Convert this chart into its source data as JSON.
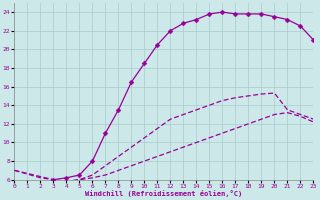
{
  "xlabel": "Windchill (Refroidissement éolien,°C)",
  "bg_color": "#cce8e8",
  "line_color": "#990099",
  "grid_color": "#b0d0d0",
  "xlim": [
    0,
    23
  ],
  "ylim": [
    6,
    25
  ],
  "yticks": [
    6,
    8,
    10,
    12,
    14,
    16,
    18,
    20,
    22,
    24
  ],
  "xticks": [
    0,
    1,
    2,
    3,
    4,
    5,
    6,
    7,
    8,
    9,
    10,
    11,
    12,
    13,
    14,
    15,
    16,
    17,
    18,
    19,
    20,
    21,
    22,
    23
  ],
  "curve_top_x": [
    3,
    4,
    5,
    6,
    7,
    8,
    9,
    10,
    11,
    12,
    13,
    14,
    15,
    16,
    17,
    18,
    19,
    20,
    21,
    22,
    23
  ],
  "curve_top_y": [
    6.0,
    6.2,
    6.5,
    8.0,
    11.0,
    13.5,
    16.5,
    18.5,
    20.5,
    22.0,
    22.8,
    23.2,
    23.8,
    24.0,
    23.8,
    23.8,
    23.8,
    23.5,
    23.2,
    22.5,
    21.0
  ],
  "curve_mid_x": [
    0,
    3,
    4,
    5,
    6,
    7,
    8,
    9,
    10,
    11,
    12,
    13,
    14,
    15,
    16,
    17,
    18,
    19,
    20,
    21,
    22,
    23
  ],
  "curve_mid_y": [
    7.0,
    6.0,
    5.8,
    6.0,
    6.5,
    7.5,
    8.5,
    9.5,
    10.5,
    11.5,
    12.5,
    13.0,
    13.5,
    14.0,
    14.5,
    14.8,
    15.0,
    15.2,
    15.3,
    13.5,
    13.0,
    12.5
  ],
  "curve_bot_x": [
    0,
    2,
    3,
    4,
    5,
    6,
    7,
    8,
    9,
    10,
    11,
    12,
    13,
    14,
    15,
    16,
    17,
    18,
    19,
    20,
    21,
    22,
    23
  ],
  "curve_bot_y": [
    7.0,
    6.2,
    6.0,
    5.8,
    6.0,
    6.2,
    6.5,
    7.0,
    7.5,
    8.0,
    8.5,
    9.0,
    9.5,
    10.0,
    10.5,
    11.0,
    11.5,
    12.0,
    12.5,
    13.0,
    13.2,
    12.8,
    12.2
  ],
  "marker": "D",
  "markersize": 2.5,
  "linewidth": 0.9
}
